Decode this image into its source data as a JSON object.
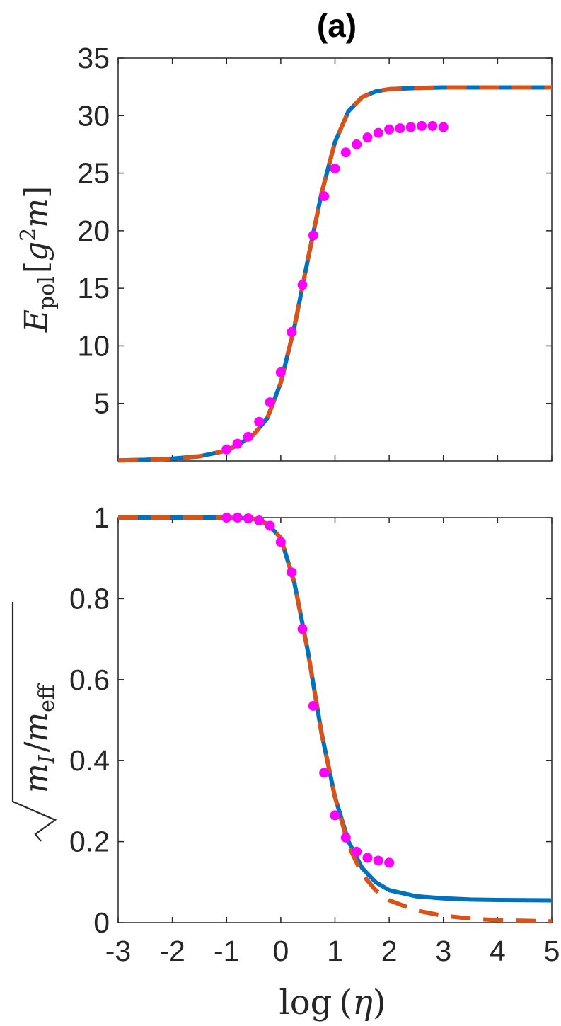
{
  "title": "(a)",
  "xlabel": {
    "fn": "log",
    "paren_open": "(",
    "var": "η",
    "paren_close": ")"
  },
  "colors": {
    "solid": "#0072BD",
    "dashed": "#D95319",
    "dots": "#FF00FF",
    "axis": "#262626"
  },
  "chart_data": [
    {
      "type": "line",
      "ylabel": {
        "E": "E",
        "sub": "pol",
        "bracket_open": "[",
        "g": "g",
        "sup": "2",
        "m": "m",
        "bracket_close": "]"
      },
      "xlim": [
        -3,
        5
      ],
      "ylim": [
        0,
        35
      ],
      "xticks": [
        -3,
        -2,
        -1,
        0,
        1,
        2,
        3,
        4,
        5
      ],
      "yticks": [
        "5",
        "10",
        "15",
        "20",
        "25",
        "30",
        "35"
      ],
      "grid": false,
      "series": [
        {
          "style": "solid",
          "x": [
            -3,
            -2.5,
            -2,
            -1.5,
            -1,
            -0.75,
            -0.5,
            -0.25,
            0,
            0.25,
            0.5,
            0.75,
            1,
            1.25,
            1.5,
            1.75,
            2,
            2.5,
            3,
            4,
            5
          ],
          "y": [
            0.05,
            0.1,
            0.2,
            0.4,
            0.9,
            1.5,
            2.3,
            3.7,
            6.8,
            11.6,
            17.5,
            23.2,
            27.7,
            30.4,
            31.6,
            32.1,
            32.3,
            32.4,
            32.45,
            32.45,
            32.45
          ]
        },
        {
          "style": "dashed",
          "x": [
            -3,
            -2.5,
            -2,
            -1.5,
            -1,
            -0.75,
            -0.5,
            -0.25,
            0,
            0.25,
            0.5,
            0.75,
            1,
            1.25,
            1.5,
            1.75,
            2,
            2.5,
            3,
            4,
            5
          ],
          "y": [
            0.05,
            0.1,
            0.2,
            0.4,
            0.9,
            1.5,
            2.3,
            3.7,
            6.8,
            11.6,
            17.5,
            23.2,
            27.7,
            30.4,
            31.6,
            32.1,
            32.3,
            32.4,
            32.45,
            32.45,
            32.45
          ]
        },
        {
          "style": "dots",
          "x": [
            -1,
            -0.8,
            -0.6,
            -0.4,
            -0.2,
            0,
            0.2,
            0.4,
            0.6,
            0.8,
            1,
            1.2,
            1.4,
            1.6,
            1.8,
            2,
            2.2,
            2.4,
            2.6,
            2.8,
            3
          ],
          "y": [
            1.0,
            1.5,
            2.1,
            3.4,
            5.1,
            7.7,
            11.2,
            15.3,
            19.6,
            23.0,
            25.4,
            26.8,
            27.5,
            28.1,
            28.5,
            28.8,
            28.9,
            29.0,
            29.1,
            29.1,
            29.0
          ]
        }
      ]
    },
    {
      "type": "line",
      "ylabel": {
        "m1": "m",
        "sub1": "I",
        "slash": "/",
        "m2": "m",
        "sub2": "eff"
      },
      "xlim": [
        -3,
        5
      ],
      "ylim": [
        0,
        1
      ],
      "xticks": [
        -3,
        -2,
        -1,
        0,
        1,
        2,
        3,
        4,
        5
      ],
      "xticklabels": [
        "-3",
        "-2",
        "-1",
        "0",
        "1",
        "2",
        "3",
        "4",
        "5"
      ],
      "yticks": [
        "0",
        "0.2",
        "0.4",
        "0.6",
        "0.8",
        "1"
      ],
      "grid": false,
      "series": [
        {
          "style": "solid",
          "x": [
            -3,
            -2,
            -1,
            -0.5,
            -0.25,
            0,
            0.25,
            0.5,
            0.75,
            1,
            1.25,
            1.5,
            1.75,
            2,
            2.5,
            3,
            3.5,
            4,
            5
          ],
          "y": [
            1.0,
            1.0,
            1.0,
            0.997,
            0.985,
            0.95,
            0.84,
            0.67,
            0.47,
            0.31,
            0.2,
            0.135,
            0.1,
            0.08,
            0.065,
            0.06,
            0.057,
            0.056,
            0.055
          ]
        },
        {
          "style": "dashed",
          "x": [
            -3,
            -2,
            -1,
            -0.5,
            -0.25,
            0,
            0.25,
            0.5,
            0.75,
            1,
            1.25,
            1.5,
            1.75,
            2,
            2.5,
            3,
            3.5,
            4,
            5
          ],
          "y": [
            1.0,
            1.0,
            1.0,
            0.997,
            0.985,
            0.95,
            0.84,
            0.67,
            0.47,
            0.31,
            0.19,
            0.12,
            0.08,
            0.055,
            0.03,
            0.017,
            0.01,
            0.006,
            0.003
          ]
        },
        {
          "style": "dots",
          "x": [
            -1,
            -0.8,
            -0.6,
            -0.4,
            -0.2,
            0,
            0.2,
            0.4,
            0.6,
            0.8,
            1,
            1.2,
            1.4,
            1.6,
            1.8,
            2
          ],
          "y": [
            1.0,
            1.0,
            0.998,
            0.993,
            0.98,
            0.94,
            0.865,
            0.725,
            0.535,
            0.37,
            0.265,
            0.21,
            0.175,
            0.16,
            0.153,
            0.148
          ]
        }
      ]
    }
  ]
}
